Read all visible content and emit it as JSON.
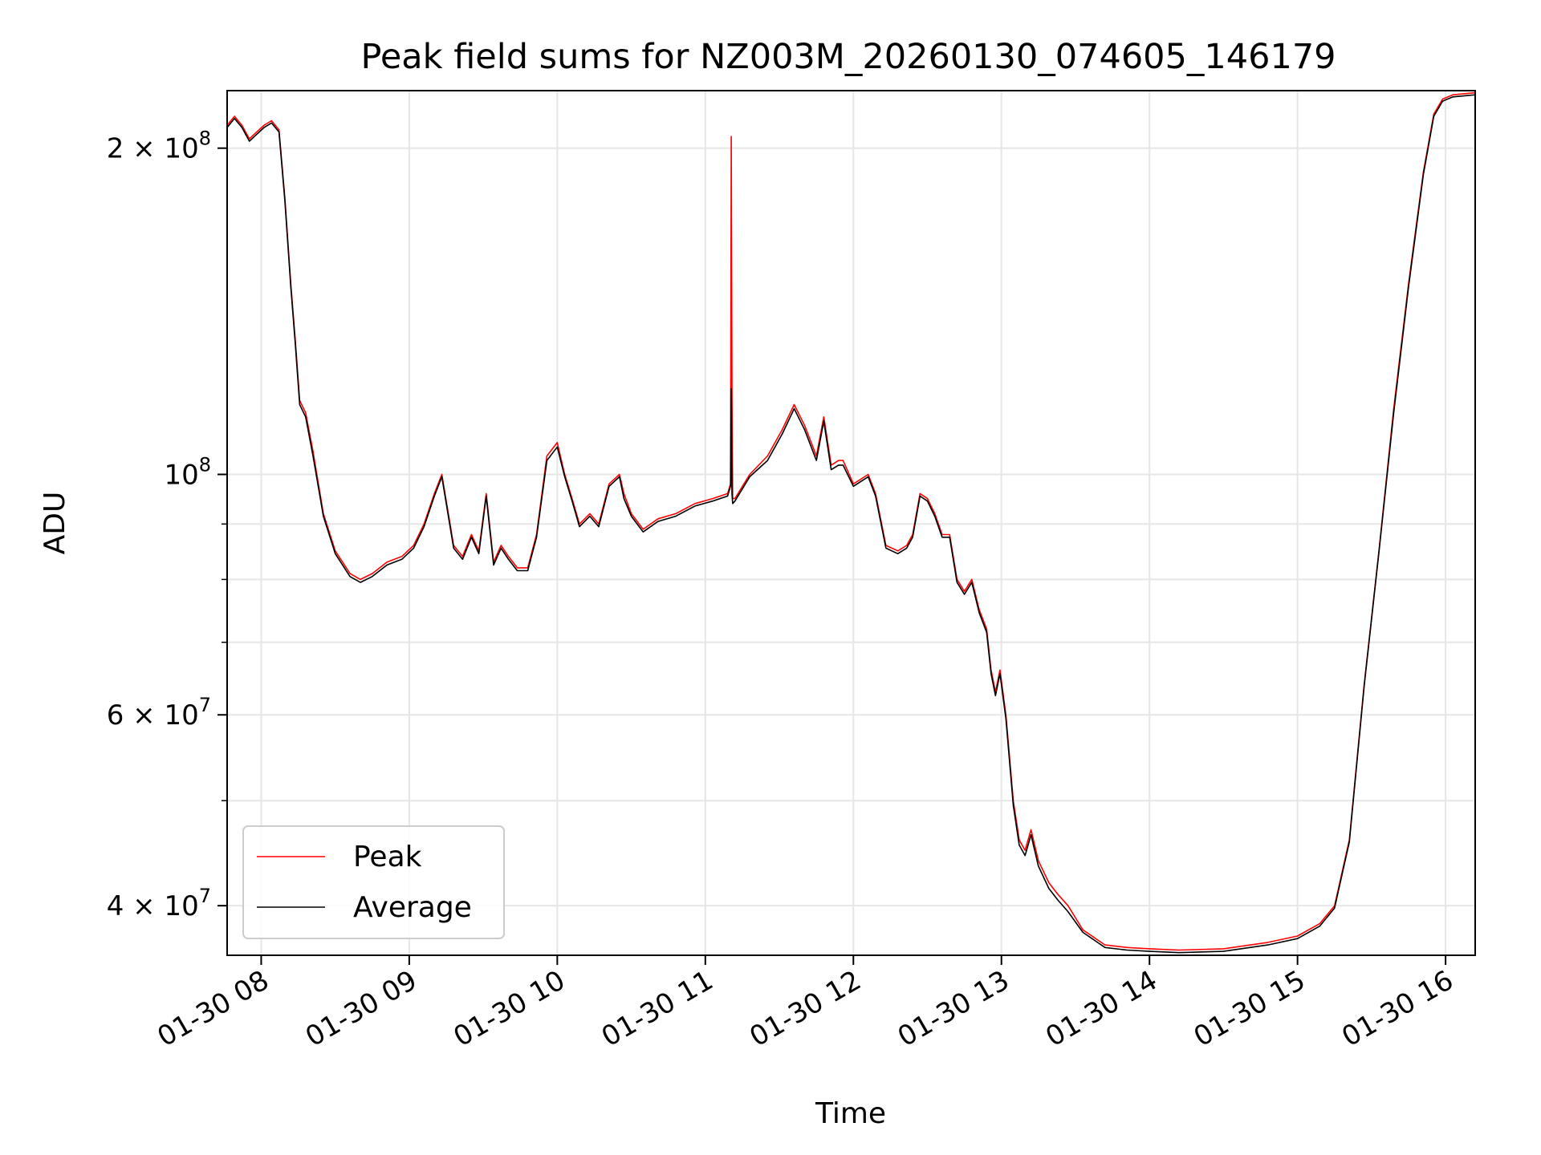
{
  "chart_data": {
    "type": "line",
    "title": "Peak field sums for NZ003M_20260130_074605_146179",
    "xlabel": "Time",
    "ylabel": "ADU",
    "x_unit": "hour of day, 2026-01-30",
    "xlim": [
      7.77,
      16.2
    ],
    "ylim": [
      36000000,
      226000000
    ],
    "y_scale": "log",
    "grid": true,
    "legend_position": "lower-left",
    "x_ticks": [
      {
        "value": 8,
        "label": "01-30 08"
      },
      {
        "value": 9,
        "label": "01-30 09"
      },
      {
        "value": 10,
        "label": "01-30 10"
      },
      {
        "value": 11,
        "label": "01-30 11"
      },
      {
        "value": 12,
        "label": "01-30 12"
      },
      {
        "value": 13,
        "label": "01-30 13"
      },
      {
        "value": 14,
        "label": "01-30 14"
      },
      {
        "value": 15,
        "label": "01-30 15"
      },
      {
        "value": 16,
        "label": "01-30 16"
      }
    ],
    "y_ticks_major": [
      {
        "value": 40000000,
        "base": "4",
        "exp": "7"
      },
      {
        "value": 60000000,
        "base": "6",
        "exp": "7"
      },
      {
        "value": 100000000,
        "base": "10",
        "exp": "8"
      },
      {
        "value": 200000000,
        "base": "2",
        "exp": "8"
      }
    ],
    "y_ticks_minor": [
      50000000,
      70000000,
      80000000,
      90000000
    ],
    "series": [
      {
        "name": "Peak",
        "color": "#ff0000",
        "x": [
          7.77,
          7.82,
          7.87,
          7.92,
          7.97,
          8.02,
          8.07,
          8.12,
          8.16,
          8.2,
          8.23,
          8.26,
          8.3,
          8.35,
          8.42,
          8.5,
          8.6,
          8.67,
          8.75,
          8.85,
          8.95,
          9.03,
          9.1,
          9.17,
          9.22,
          9.3,
          9.36,
          9.42,
          9.47,
          9.52,
          9.57,
          9.62,
          9.67,
          9.73,
          9.8,
          9.86,
          9.93,
          10.0,
          10.05,
          10.1,
          10.15,
          10.22,
          10.28,
          10.35,
          10.42,
          10.45,
          10.5,
          10.58,
          10.68,
          10.8,
          10.93,
          11.05,
          11.15,
          11.17,
          11.175,
          11.18,
          11.185,
          11.2,
          11.3,
          11.42,
          11.52,
          11.6,
          11.67,
          11.75,
          11.8,
          11.85,
          11.9,
          11.93,
          12.0,
          12.1,
          12.15,
          12.22,
          12.3,
          12.36,
          12.4,
          12.45,
          12.5,
          12.55,
          12.6,
          12.65,
          12.7,
          12.75,
          12.8,
          12.85,
          12.9,
          12.93,
          12.96,
          12.99,
          13.03,
          13.08,
          13.12,
          13.16,
          13.2,
          13.25,
          13.32,
          13.38,
          13.45,
          13.55,
          13.7,
          13.85,
          14.0,
          14.2,
          14.5,
          14.8,
          15.0,
          15.15,
          15.25,
          15.35,
          15.45,
          15.55,
          15.65,
          15.75,
          15.85,
          15.92,
          15.98,
          16.05,
          16.2
        ],
        "values": [
          210000000,
          214000000,
          210000000,
          204000000,
          207000000,
          210000000,
          212000000,
          208000000,
          180000000,
          150000000,
          133000000,
          117000000,
          114000000,
          105000000,
          92000000,
          85000000,
          81000000,
          80000000,
          81000000,
          83000000,
          84000000,
          86000000,
          90000000,
          96000000,
          100000000,
          86000000,
          84000000,
          88000000,
          85000000,
          96000000,
          83000000,
          86000000,
          84000000,
          82000000,
          82000000,
          88000000,
          104000000,
          107000000,
          100000000,
          95000000,
          90000000,
          92000000,
          90000000,
          98000000,
          100000000,
          96000000,
          92000000,
          89000000,
          91000000,
          92000000,
          94000000,
          95000000,
          96000000,
          98000000,
          205000000,
          120000000,
          95000000,
          95000000,
          100000000,
          104000000,
          110000000,
          116000000,
          111000000,
          104000000,
          113000000,
          102000000,
          103000000,
          103000000,
          98000000,
          100000000,
          96000000,
          86000000,
          85000000,
          86000000,
          88000000,
          96000000,
          95000000,
          92000000,
          88000000,
          88000000,
          80000000,
          78000000,
          80000000,
          75000000,
          72000000,
          66000000,
          63000000,
          66000000,
          60000000,
          50000000,
          46000000,
          45000000,
          47000000,
          44000000,
          42000000,
          41000000,
          40000000,
          38000000,
          36800000,
          36600000,
          36500000,
          36400000,
          36500000,
          37000000,
          37500000,
          38500000,
          40000000,
          46000000,
          64000000,
          85000000,
          115000000,
          150000000,
          190000000,
          215000000,
          222000000,
          224000000,
          225000000
        ]
      },
      {
        "name": "Average",
        "color": "#000000",
        "x": [
          7.77,
          7.82,
          7.87,
          7.92,
          7.97,
          8.02,
          8.07,
          8.12,
          8.16,
          8.2,
          8.23,
          8.26,
          8.3,
          8.35,
          8.42,
          8.5,
          8.6,
          8.67,
          8.75,
          8.85,
          8.95,
          9.03,
          9.1,
          9.17,
          9.22,
          9.3,
          9.36,
          9.42,
          9.47,
          9.52,
          9.57,
          9.62,
          9.67,
          9.73,
          9.8,
          9.86,
          9.93,
          10.0,
          10.05,
          10.1,
          10.15,
          10.22,
          10.28,
          10.35,
          10.42,
          10.45,
          10.5,
          10.58,
          10.68,
          10.8,
          10.93,
          11.05,
          11.15,
          11.17,
          11.175,
          11.18,
          11.185,
          11.2,
          11.3,
          11.42,
          11.52,
          11.6,
          11.67,
          11.75,
          11.8,
          11.85,
          11.9,
          11.93,
          12.0,
          12.1,
          12.15,
          12.22,
          12.3,
          12.36,
          12.4,
          12.45,
          12.5,
          12.55,
          12.6,
          12.65,
          12.7,
          12.75,
          12.8,
          12.85,
          12.9,
          12.93,
          12.96,
          12.99,
          13.03,
          13.08,
          13.12,
          13.16,
          13.2,
          13.25,
          13.32,
          13.38,
          13.45,
          13.55,
          13.7,
          13.85,
          14.0,
          14.2,
          14.5,
          14.8,
          15.0,
          15.15,
          15.25,
          15.35,
          15.45,
          15.55,
          15.65,
          15.75,
          15.85,
          15.92,
          15.98,
          16.05,
          16.2
        ],
        "values": [
          209000000,
          213000000,
          209000000,
          203000000,
          206000000,
          209000000,
          211000000,
          207000000,
          179000000,
          149000000,
          132000000,
          116000000,
          113000000,
          104000000,
          91500000,
          84500000,
          80500000,
          79500000,
          80500000,
          82500000,
          83500000,
          85500000,
          89500000,
          95500000,
          99500000,
          85500000,
          83500000,
          87500000,
          84500000,
          95500000,
          82500000,
          85500000,
          83500000,
          81500000,
          81500000,
          87500000,
          103000000,
          106000000,
          99500000,
          94500000,
          89500000,
          91500000,
          89500000,
          97500000,
          99500000,
          95000000,
          91500000,
          88500000,
          90500000,
          91500000,
          93500000,
          94500000,
          95500000,
          97500000,
          120000000,
          96000000,
          94000000,
          94500000,
          99500000,
          103000000,
          109000000,
          115000000,
          110000000,
          103000000,
          112000000,
          101000000,
          102000000,
          102000000,
          97500000,
          99500000,
          95500000,
          85500000,
          84500000,
          85500000,
          87500000,
          95500000,
          94500000,
          91500000,
          87500000,
          87500000,
          79500000,
          77500000,
          79500000,
          74500000,
          71500000,
          65500000,
          62500000,
          65500000,
          59500000,
          49500000,
          45500000,
          44500000,
          46500000,
          43500000,
          41500000,
          40500000,
          39500000,
          37800000,
          36600000,
          36400000,
          36300000,
          36200000,
          36300000,
          36800000,
          37300000,
          38300000,
          39800000,
          45800000,
          63800000,
          84800000,
          114000000,
          149000000,
          189000000,
          214000000,
          221000000,
          223000000,
          224000000
        ]
      }
    ]
  }
}
